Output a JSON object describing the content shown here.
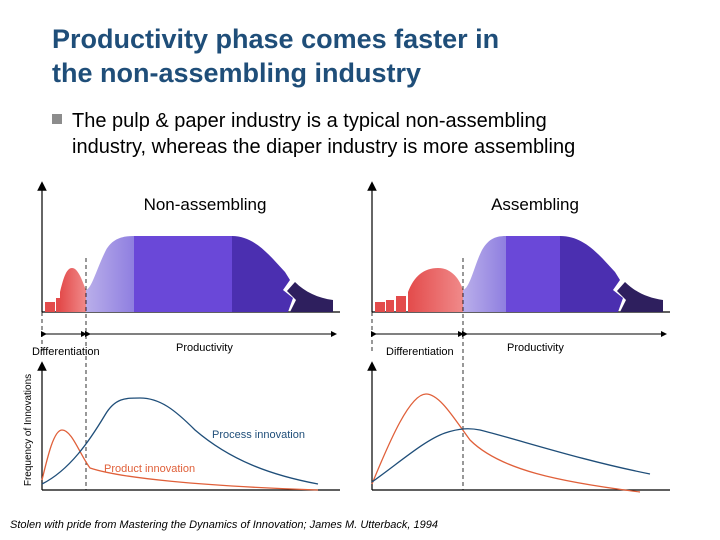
{
  "title": {
    "line1": "Productivity phase comes faster in",
    "line2": "the non-assembling industry"
  },
  "bullet": {
    "line1": "The pulp & paper industry is a typical non-assembling",
    "line2": "industry, whereas the diaper industry is more assembling"
  },
  "panels": {
    "left_heading": "Non-assembling",
    "right_heading": "Assembling",
    "left_phase_1": "Differentiation",
    "left_phase_2": "Productivity",
    "right_phase_1": "Differentiation",
    "right_phase_2": "Productivity"
  },
  "graph": {
    "ylabel": "Frequency of Innovations",
    "process_label": "Process innovation",
    "product_label": "Product innovation"
  },
  "colors": {
    "title": "#1f4e79",
    "product_curve": "#e0603a",
    "process_curve": "#1f4e79",
    "phase_red": "#e34b4b",
    "phase_lavender": "#a899e6",
    "phase_violet": "#6a48d8",
    "phase_dark": "#2e1f5e"
  },
  "source": "Stolen with pride from Mastering the Dynamics of Innovation; James M. Utterback, 1994"
}
